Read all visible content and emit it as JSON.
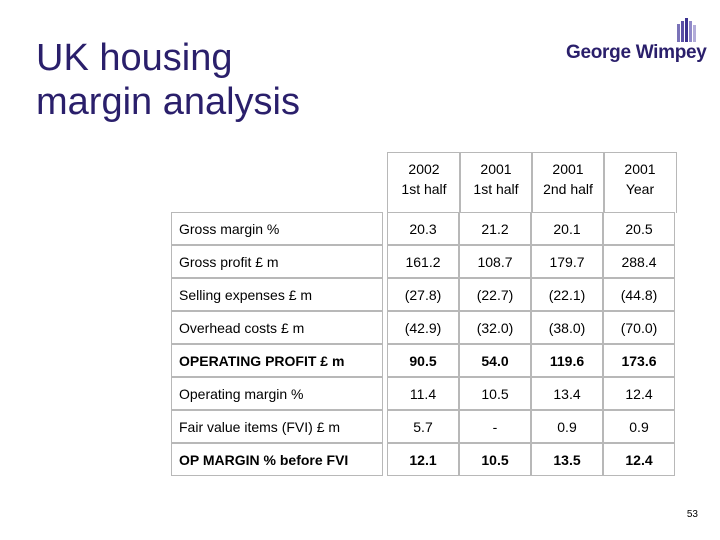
{
  "slide": {
    "title_line1": "UK housing",
    "title_line2": "margin analysis",
    "logo_text": "George Wimpey",
    "page_number": "53"
  },
  "table": {
    "columns": [
      {
        "line1": "2002",
        "line2": "1st half"
      },
      {
        "line1": "2001",
        "line2": "1st half"
      },
      {
        "line1": "2001",
        "line2": "2nd half"
      },
      {
        "line1": "2001",
        "line2": "Year"
      }
    ],
    "rows": [
      {
        "label": "Gross margin %",
        "bold": false,
        "values": [
          "20.3",
          "21.2",
          "20.1",
          "20.5"
        ]
      },
      {
        "label": "Gross profit £ m",
        "bold": false,
        "values": [
          "161.2",
          "108.7",
          "179.7",
          "288.4"
        ]
      },
      {
        "label": "Selling expenses £ m",
        "bold": false,
        "values": [
          "(27.8)",
          "(22.7)",
          "(22.1)",
          "(44.8)"
        ]
      },
      {
        "label": "Overhead costs £ m",
        "bold": false,
        "values": [
          "(42.9)",
          "(32.0)",
          "(38.0)",
          "(70.0)"
        ]
      },
      {
        "label": "OPERATING PROFIT £ m",
        "bold": true,
        "values": [
          "90.5",
          "54.0",
          "119.6",
          "173.6"
        ]
      },
      {
        "label": "Operating margin %",
        "bold": false,
        "values": [
          "11.4",
          "10.5",
          "13.4",
          "12.4"
        ]
      },
      {
        "label": "Fair value items (FVI) £ m",
        "bold": false,
        "values": [
          "5.7",
          "-",
          "0.9",
          "0.9"
        ]
      },
      {
        "label": "OP MARGIN % before FVI",
        "bold": true,
        "values": [
          "12.1",
          "10.5",
          "13.5",
          "12.4"
        ]
      }
    ]
  }
}
